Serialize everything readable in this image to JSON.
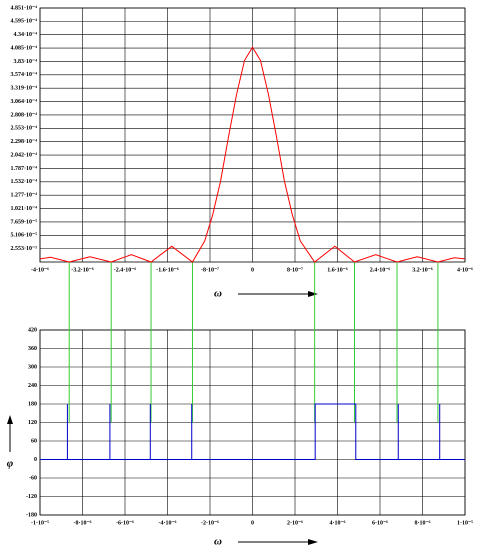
{
  "chart_data": [
    {
      "type": "line",
      "color": "#ff0000",
      "x_label": "ω",
      "grid": true,
      "x": [
        -4e-06,
        -3.8e-06,
        -3.45e-06,
        -3.06e-06,
        -2.66e-06,
        -2.28e-06,
        -1.91e-06,
        -1.52e-06,
        -1.13e-06,
        -9e-07,
        -7.5e-07,
        -6e-07,
        -4.5e-07,
        -3e-07,
        -1.5e-07,
        0,
        1.5e-07,
        3e-07,
        4.5e-07,
        6e-07,
        7.5e-07,
        9e-07,
        1.17e-06,
        1.55e-06,
        1.92e-06,
        2.32e-06,
        2.72e-06,
        3.1e-06,
        3.49e-06,
        3.8e-06,
        4e-06
      ],
      "values": [
        6e-06,
        9e-06,
        0,
        1e-05,
        0,
        1.4e-05,
        0,
        3e-05,
        0,
        4e-05,
        9e-05,
        0.000155,
        0.00024,
        0.00032,
        0.000385,
        0.00041,
        0.000385,
        0.00032,
        0.00024,
        0.000155,
        9e-05,
        4e-05,
        0,
        3e-05,
        0,
        1.4e-05,
        0,
        1e-05,
        0,
        8e-06,
        6e-06
      ],
      "xlim": [
        -4e-06,
        4e-06
      ],
      "xticks": [
        {
          "value": -4e-06,
          "label": "-4·10⁻⁶"
        },
        {
          "value": -3.2e-06,
          "label": "-3.2·10⁻⁶"
        },
        {
          "value": -2.4e-06,
          "label": "-2.4·10⁻⁶"
        },
        {
          "value": -1.6e-06,
          "label": "-1.6·10⁻⁶"
        },
        {
          "value": -8e-07,
          "label": "-8·10⁻⁷"
        },
        0,
        {
          "value": 8e-07,
          "label": "8·10⁻⁷"
        },
        {
          "value": 1.6e-06,
          "label": "1.6·10⁻⁶"
        },
        {
          "value": 2.4e-06,
          "label": "2.4·10⁻⁶"
        },
        {
          "value": 3.2e-06,
          "label": "3.2·10⁻⁶"
        },
        {
          "value": 4e-06,
          "label": "4·10⁻⁶"
        }
      ],
      "ylim": [
        0,
        0.00048507
      ],
      "yticks": [
        {
          "value": 2.553e-05,
          "label": "2.553·10⁻⁵"
        },
        {
          "value": 5.106e-05,
          "label": "5.106·10⁻⁵"
        },
        {
          "value": 7.659e-05,
          "label": "7.659·10⁻⁵"
        },
        {
          "value": 0.00010212,
          "label": "1.021·10⁻⁴"
        },
        {
          "value": 0.00012765,
          "label": "1.277·10⁻⁴"
        },
        {
          "value": 0.00015318,
          "label": "1.532·10⁻⁴"
        },
        {
          "value": 0.00017871,
          "label": "1.787·10⁻⁴"
        },
        {
          "value": 0.00020424,
          "label": "2.042·10⁻⁴"
        },
        {
          "value": 0.00022977,
          "label": "2.298·10⁻⁴"
        },
        {
          "value": 0.0002553,
          "label": "2.553·10⁻⁴"
        },
        {
          "value": 0.00028083,
          "label": "2.808·10⁻⁴"
        },
        {
          "value": 0.00030636,
          "label": "3.064·10⁻⁴"
        },
        {
          "value": 0.00033189,
          "label": "3.319·10⁻⁴"
        },
        {
          "value": 0.00035742,
          "label": "3.574·10⁻⁴"
        },
        {
          "value": 0.00038295,
          "label": "3.83·10⁻⁴"
        },
        {
          "value": 0.00040848,
          "label": "4.085·10⁻⁴"
        },
        {
          "value": 0.00043401,
          "label": "4.34·10⁻⁴"
        },
        {
          "value": 0.00045954,
          "label": "4.595·10⁻⁴"
        },
        {
          "value": 0.00048507,
          "label": "4.851·10⁻⁴"
        }
      ]
    },
    {
      "type": "line",
      "color": "#0000cc",
      "x_label": "ω",
      "y_label": "φ",
      "grid": true,
      "x": [
        -1e-05,
        -8.71e-06,
        -8.71e-06,
        -8.71e-06,
        -6.71e-06,
        -6.71e-06,
        -6.71e-06,
        -4.81e-06,
        -4.81e-06,
        -4.81e-06,
        -2.86e-06,
        -2.86e-06,
        -2.86e-06,
        2.95e-06,
        2.95e-06,
        4.86e-06,
        4.86e-06,
        6.86e-06,
        6.86e-06,
        6.86e-06,
        8.81e-06,
        8.81e-06,
        8.81e-06,
        1e-05
      ],
      "values": [
        0,
        0,
        180,
        0,
        0,
        180,
        0,
        0,
        180,
        0,
        0,
        180,
        0,
        0,
        180,
        180,
        0,
        0,
        180,
        0,
        0,
        180,
        0,
        0
      ],
      "xlim": [
        -1e-05,
        1e-05
      ],
      "xticks": [
        {
          "value": -1e-05,
          "label": "-1·10⁻⁵"
        },
        {
          "value": -8e-06,
          "label": "-8·10⁻⁶"
        },
        {
          "value": -6e-06,
          "label": "-6·10⁻⁶"
        },
        {
          "value": -4e-06,
          "label": "-4·10⁻⁶"
        },
        {
          "value": -2e-06,
          "label": "-2·10⁻⁶"
        },
        0,
        {
          "value": 2e-06,
          "label": "2·10⁻⁶"
        },
        {
          "value": 4e-06,
          "label": "4·10⁻⁶"
        },
        {
          "value": 6e-06,
          "label": "6·10⁻⁶"
        },
        {
          "value": 8e-06,
          "label": "8·10⁻⁶"
        },
        {
          "value": 1e-05,
          "label": "1·10⁻⁵"
        }
      ],
      "ylim": [
        -180,
        420
      ],
      "yticks": [
        -180,
        -120,
        -60,
        0,
        60,
        120,
        180,
        240,
        300,
        360,
        420
      ]
    }
  ]
}
